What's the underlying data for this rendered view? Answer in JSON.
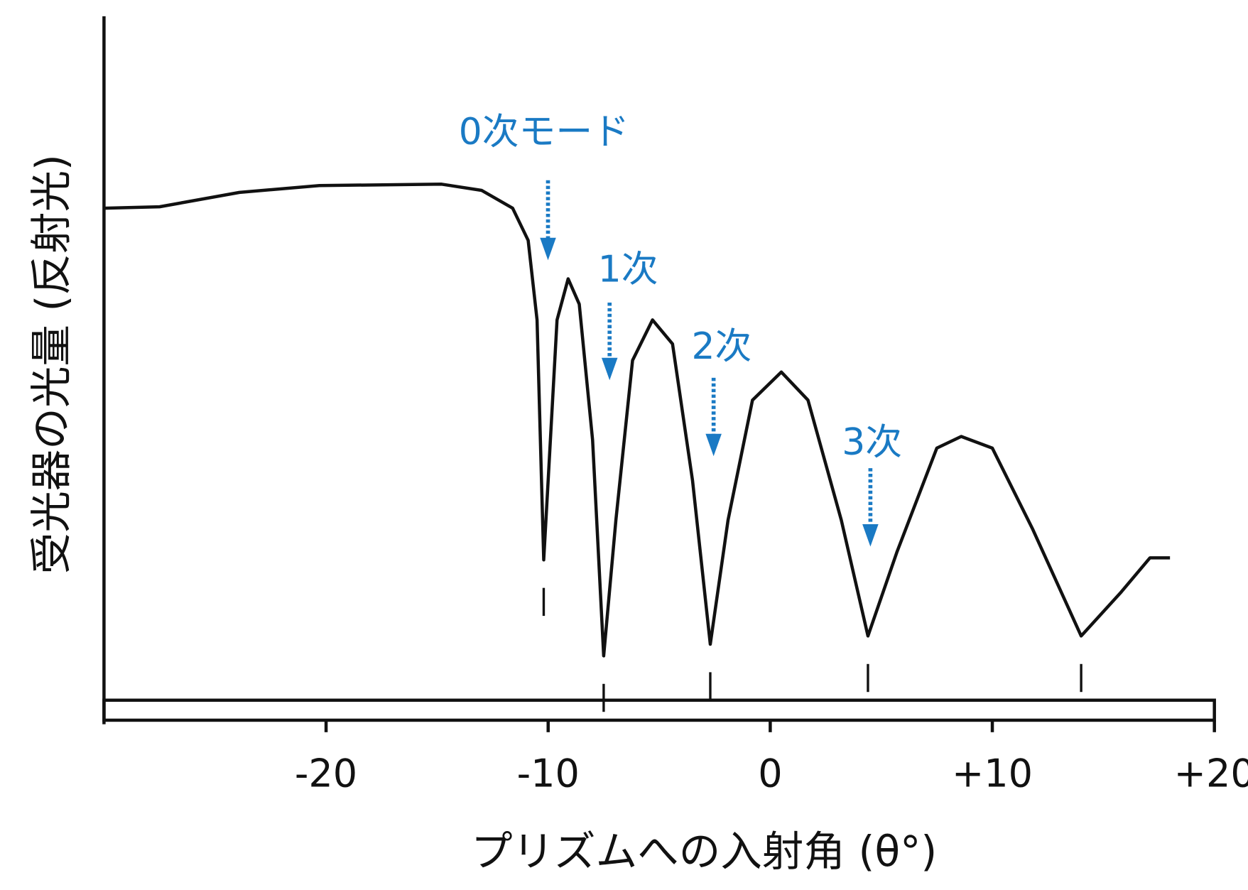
{
  "chart_data": {
    "type": "line",
    "x_label": "プリズムへの入射角 (θ°)",
    "y_label": "受光器の光量 (反射光)",
    "annotations": [
      "0次モード",
      "1次",
      "2次",
      "3次"
    ],
    "xlim": [
      -30,
      20
    ],
    "xticks": [
      -20,
      -10,
      0,
      {
        "value": 10,
        "label": "+10"
      },
      {
        "value": 20,
        "label": "+20"
      }
    ],
    "ylim": [
      0,
      100
    ],
    "color": "#111111",
    "annotation_color": "#1a7ac4",
    "x": [
      -30,
      -27.5,
      -23.9,
      -20.3,
      -14.8,
      -13.0,
      -11.6,
      -10.9,
      -10.5,
      -10.3,
      -10.2,
      -10.0,
      -9.6,
      -9.1,
      -8.6,
      -8.0,
      -7.5,
      -6.95,
      -6.2,
      -5.3,
      -4.4,
      -3.5,
      -2.7,
      -1.9,
      -0.8,
      0.5,
      1.7,
      3.2,
      4.4,
      5.7,
      7.5,
      8.6,
      10.0,
      11.8,
      14.0,
      15.8,
      17.1,
      18.0
    ],
    "values": [
      72.0,
      72.2,
      74.3,
      75.3,
      75.5,
      74.6,
      72.0,
      67.3,
      55.7,
      32.3,
      20.7,
      32.3,
      55.7,
      61.7,
      58.0,
      38.2,
      6.7,
      26.5,
      49.8,
      55.7,
      52.2,
      32.3,
      8.4,
      26.5,
      44.0,
      48.1,
      44.0,
      26.5,
      9.6,
      21.8,
      37.0,
      38.7,
      37.0,
      25.3,
      9.6,
      16.0,
      21.0,
      21.0
    ]
  }
}
